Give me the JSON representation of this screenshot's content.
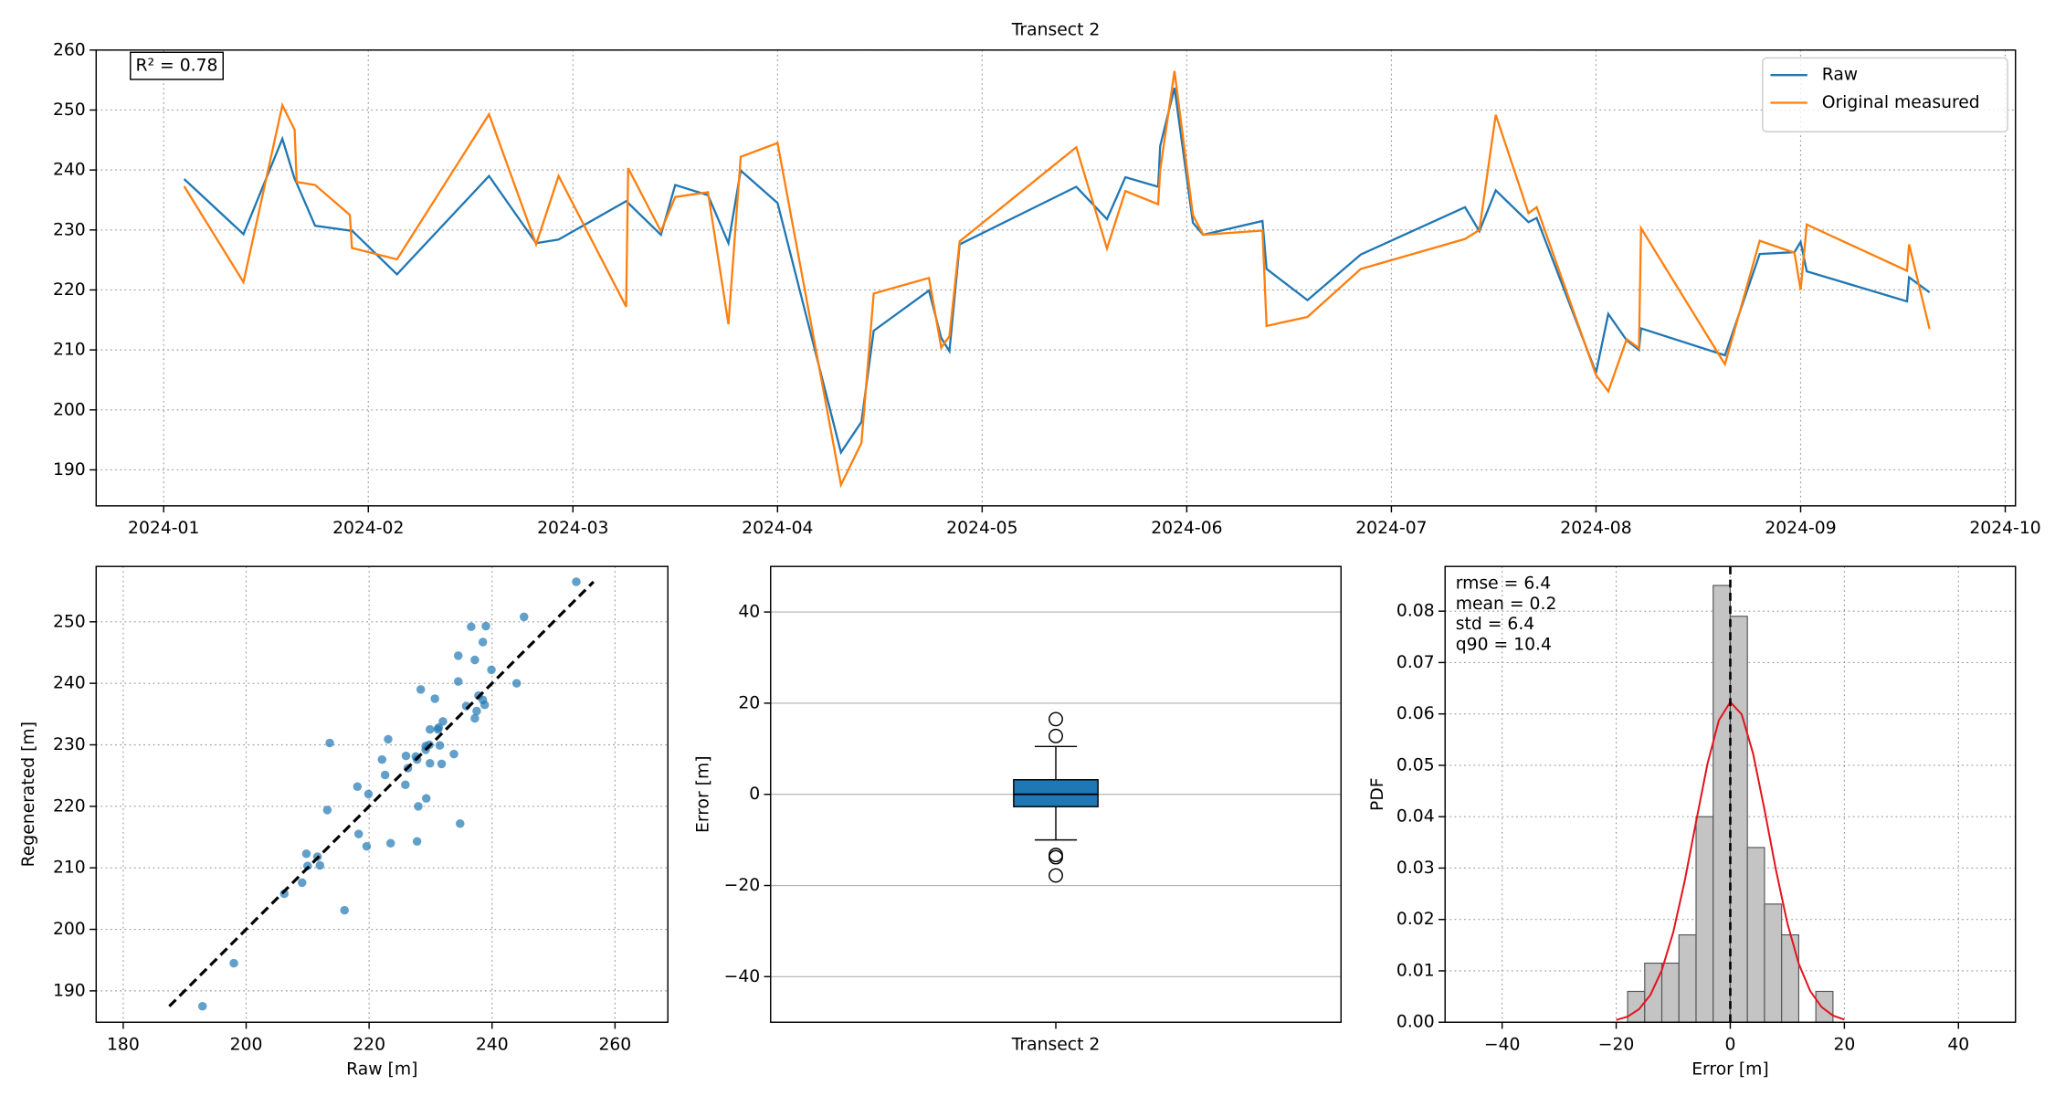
{
  "chart_data": [
    {
      "type": "line",
      "title": "Transect 2",
      "x": [
        1.1,
        1.39,
        1.58,
        1.64,
        1.65,
        1.74,
        1.91,
        1.92,
        2.14,
        2.59,
        2.82,
        2.93,
        3.26,
        3.27,
        3.43,
        3.5,
        3.66,
        3.76,
        3.82,
        4.0,
        4.31,
        4.41,
        4.47,
        4.74,
        4.8,
        4.84,
        4.89,
        5.46,
        5.61,
        5.7,
        5.86,
        5.87,
        5.94,
        6.03,
        6.08,
        6.37,
        6.39,
        6.59,
        6.85,
        7.36,
        7.43,
        7.51,
        7.67,
        7.71,
        8.0,
        8.06,
        8.15,
        8.21,
        8.22,
        8.63,
        8.8,
        8.97,
        9.0,
        9.03,
        9.52,
        9.53,
        9.63
      ],
      "series": [
        {
          "name": "Raw",
          "color": "#1f77b4",
          "values": [
            238.5,
            229.3,
            245.2,
            238.5,
            237.8,
            230.7,
            229.9,
            229.9,
            222.6,
            239.0,
            227.8,
            228.4,
            234.8,
            234.5,
            229.2,
            237.5,
            235.8,
            227.8,
            239.9,
            234.5,
            192.9,
            198.0,
            213.2,
            219.9,
            212.0,
            209.8,
            227.6,
            237.2,
            231.8,
            238.8,
            237.2,
            244.0,
            253.7,
            231.2,
            229.2,
            231.5,
            223.5,
            218.3,
            225.9,
            233.8,
            229.8,
            236.6,
            231.3,
            232.0,
            206.2,
            216.0,
            211.6,
            210.0,
            213.6,
            209.1,
            226.0,
            226.3,
            228.0,
            223.1,
            218.1,
            222.1,
            219.6
          ]
        },
        {
          "name": "Original measured",
          "color": "#ff7f0e",
          "values": [
            237.3,
            221.3,
            250.8,
            246.7,
            238.0,
            237.5,
            232.5,
            227.0,
            225.1,
            249.3,
            227.6,
            239.0,
            217.2,
            240.3,
            229.8,
            235.5,
            236.3,
            214.3,
            242.2,
            244.5,
            187.5,
            194.5,
            219.4,
            222.0,
            210.4,
            212.3,
            228.1,
            243.8,
            226.9,
            236.5,
            234.3,
            240.0,
            256.5,
            232.5,
            229.2,
            229.9,
            214.0,
            215.5,
            223.5,
            228.5,
            230.0,
            249.2,
            232.8,
            233.8,
            205.8,
            203.1,
            211.8,
            210.3,
            230.3,
            207.6,
            228.2,
            226.2,
            220.0,
            230.9,
            223.2,
            227.6,
            213.5
          ]
        }
      ],
      "xlim": [
        0.67,
        10.05
      ],
      "xticks": [
        {
          "value": 1,
          "label": "2024-01"
        },
        {
          "value": 2,
          "label": "2024-02"
        },
        {
          "value": 3,
          "label": "2024-03"
        },
        {
          "value": 4,
          "label": "2024-04"
        },
        {
          "value": 5,
          "label": "2024-05"
        },
        {
          "value": 6,
          "label": "2024-06"
        },
        {
          "value": 7,
          "label": "2024-07"
        },
        {
          "value": 8,
          "label": "2024-08"
        },
        {
          "value": 9,
          "label": "2024-09"
        },
        {
          "value": 10,
          "label": "2024-10"
        }
      ],
      "ylim": [
        184,
        260
      ],
      "yticks": [
        190,
        200,
        210,
        220,
        230,
        240,
        250,
        260
      ],
      "grid": "both",
      "grid_style": "dotted",
      "legend": "upper right",
      "annotation": "R² = 0.78"
    },
    {
      "type": "scatter",
      "xlabel": "Raw [m]",
      "ylabel": "Regenerated [m]",
      "color": "#1f77b4",
      "x": [
        238.5,
        229.3,
        245.2,
        238.5,
        237.8,
        230.7,
        229.9,
        229.9,
        222.6,
        239.0,
        227.8,
        228.4,
        234.8,
        234.5,
        229.2,
        237.5,
        235.8,
        227.8,
        239.9,
        234.5,
        192.9,
        198.0,
        213.2,
        219.9,
        212.0,
        209.8,
        227.6,
        237.2,
        231.8,
        238.8,
        237.2,
        244.0,
        253.7,
        231.2,
        229.2,
        231.5,
        223.5,
        218.3,
        225.9,
        233.8,
        229.8,
        236.6,
        231.3,
        232.0,
        206.2,
        216.0,
        211.6,
        210.0,
        213.6,
        209.1,
        226.0,
        226.3,
        228.0,
        223.1,
        218.1,
        222.1,
        219.6
      ],
      "values": [
        237.3,
        221.3,
        250.8,
        246.7,
        238.0,
        237.5,
        232.5,
        227.0,
        225.1,
        249.3,
        227.6,
        239.0,
        217.2,
        240.3,
        229.8,
        235.5,
        236.3,
        214.3,
        242.2,
        244.5,
        187.5,
        194.5,
        219.4,
        222.0,
        210.4,
        212.3,
        228.1,
        243.8,
        226.9,
        236.5,
        234.3,
        240.0,
        256.5,
        232.5,
        229.2,
        229.9,
        214.0,
        215.5,
        223.5,
        228.5,
        230.0,
        249.2,
        232.8,
        233.8,
        205.8,
        203.1,
        211.8,
        210.3,
        230.3,
        207.6,
        228.2,
        226.2,
        220.0,
        230.9,
        223.2,
        227.6,
        213.5
      ],
      "xlim": [
        175.6,
        268.6
      ],
      "xticks": [
        180,
        200,
        220,
        240,
        260
      ],
      "ylim": [
        184.9,
        259
      ],
      "yticks": [
        190,
        200,
        210,
        220,
        230,
        240,
        250
      ],
      "grid": "both",
      "grid_style": "dotted"
    },
    {
      "type": "box",
      "ylabel": "Error [m]",
      "categories": [
        "Transect 2"
      ],
      "color": "#1f77b4",
      "median": 0,
      "q1": -2.7,
      "q3": 3.2,
      "whisker_low": -10.0,
      "whisker_high": 10.5,
      "outliers": [
        16.5,
        12.8,
        -13.3,
        -13.8,
        -17.8
      ],
      "ylim": [
        -50,
        50
      ],
      "yticks": [
        {
          "value": -40,
          "label": "−40"
        },
        {
          "value": -20,
          "label": "−20"
        },
        0,
        20,
        40
      ],
      "grid": "y",
      "grid_style": "solid"
    },
    {
      "type": "histogram",
      "xlabel": "Error [m]",
      "ylabel": "PDF",
      "color": "#c4c4c4",
      "bins": [
        -18,
        -15,
        -12,
        -9,
        -6,
        -3,
        0,
        3,
        6,
        9,
        12,
        15,
        18
      ],
      "values": [
        0.006,
        0.0115,
        0.0115,
        0.017,
        0.04,
        0.085,
        0.079,
        0.034,
        0.023,
        0.017,
        0,
        0.006
      ],
      "fit": {
        "color": "#e3141e",
        "x": [
          -20,
          -18,
          -16,
          -14,
          -12,
          -10,
          -8,
          -6,
          -4,
          -2,
          0,
          2,
          4,
          6,
          8,
          10,
          12,
          14,
          16,
          18,
          20
        ],
        "values": [
          0.00043,
          0.00109,
          0.00253,
          0.00532,
          0.01013,
          0.01751,
          0.02743,
          0.039,
          0.05027,
          0.05876,
          0.06231,
          0.05992,
          0.05227,
          0.04135,
          0.02966,
          0.01931,
          0.01139,
          0.0061,
          0.00296,
          0.0013,
          0.00052
        ]
      },
      "vline": 0,
      "annotations": [
        "rmse = 6.4",
        "mean = 0.2",
        "std = 6.4",
        "q90 = 10.4"
      ],
      "xlim": [
        -50,
        50
      ],
      "xticks": [
        {
          "value": -40,
          "label": "−40"
        },
        {
          "value": -20,
          "label": "−20"
        },
        0,
        20,
        40
      ],
      "ylim": [
        0,
        0.0887
      ],
      "yticks": [
        {
          "value": 0,
          "label": "0.00"
        },
        0.01,
        0.02,
        0.03,
        0.04,
        0.05,
        0.06,
        0.07,
        0.08
      ],
      "grid": "both",
      "grid_style": "dotted"
    }
  ]
}
